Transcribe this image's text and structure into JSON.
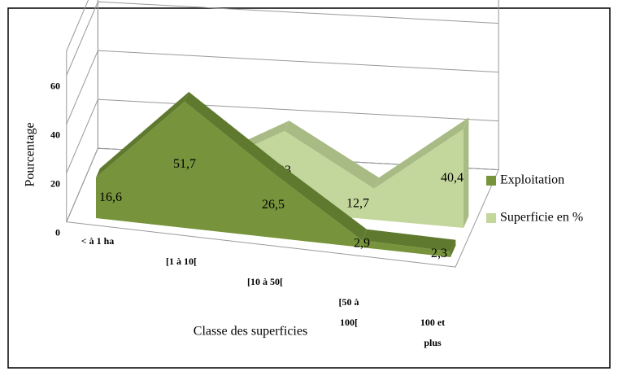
{
  "chart_data": {
    "type": "area3d",
    "categories": [
      "< à 1 ha",
      "[1 à 10[",
      "[10 à 50[",
      "[50 à 100[",
      "100 et plus"
    ],
    "series": [
      {
        "name": "Exploitation",
        "color": "#77933c",
        "values": [
          16.6,
          51.7,
          26.5,
          2.9,
          2.3
        ],
        "value_labels": [
          "16,6",
          "51,7",
          "26,5",
          "2,9",
          "2,3"
        ]
      },
      {
        "name": "Superficie en %",
        "color": "#c3d69b",
        "values": [
          1,
          13,
          33,
          12.7,
          40.4
        ],
        "value_labels": [
          null,
          null,
          "33",
          "12,7",
          "40,4"
        ]
      }
    ],
    "ylabel": "Pourcentage",
    "xlabel": "Classe des superficies",
    "ylim": [
      0,
      70
    ],
    "yticks": [
      0,
      20,
      40,
      60
    ],
    "grid": true,
    "legend": "right"
  }
}
